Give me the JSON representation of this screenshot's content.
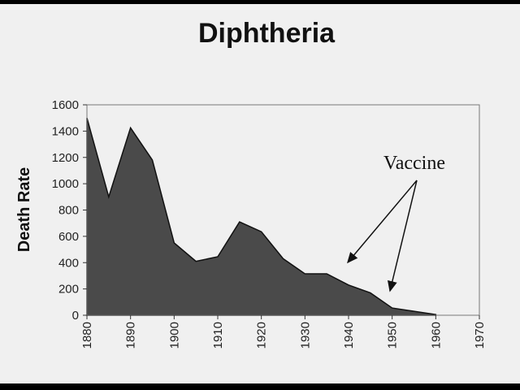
{
  "chart_data": {
    "type": "area",
    "title": "Diphtheria",
    "y_label": "Death Rate",
    "annotation": "Vaccine",
    "x": [
      1880,
      1885,
      1890,
      1895,
      1900,
      1905,
      1910,
      1915,
      1920,
      1925,
      1930,
      1935,
      1940,
      1945,
      1950,
      1955,
      1960
    ],
    "values": [
      1500,
      900,
      1425,
      1180,
      550,
      410,
      445,
      710,
      635,
      430,
      315,
      315,
      230,
      170,
      55,
      30,
      5
    ],
    "color": "#4a4a4a",
    "xlim": [
      1880,
      1970
    ],
    "xticks": [
      1880,
      1890,
      1900,
      1910,
      1920,
      1930,
      1940,
      1950,
      1960,
      1970
    ],
    "ylim": [
      0,
      1600
    ],
    "yticks": [
      0,
      200,
      400,
      600,
      800,
      1000,
      1200,
      1400,
      1600
    ]
  }
}
